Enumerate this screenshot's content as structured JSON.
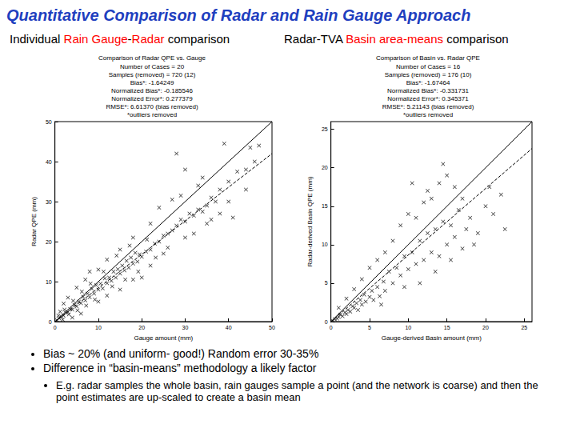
{
  "slide": {
    "title": "Quantitative Comparison of Radar and Rain Gauge Approach",
    "panel_headings": [
      [
        {
          "text": "Individual ",
          "color": "#000000"
        },
        {
          "text": "Rain Gauge",
          "color": "#ff0000"
        },
        {
          "text": "-",
          "color": "#000000"
        },
        {
          "text": "Radar",
          "color": "#ff0000"
        },
        {
          "text": " comparison",
          "color": "#000000"
        }
      ],
      [
        {
          "text": "Radar-TVA ",
          "color": "#000000"
        },
        {
          "text": "Basin area-means",
          "color": "#ff0000"
        },
        {
          "text": " comparison",
          "color": "#000000"
        }
      ]
    ],
    "bullets": [
      "Bias ~ 20% (and uniform- good!) Random error 30-35%",
      "Difference in “basin-means” methodology a likely factor"
    ],
    "sub_bullets": [
      "E.g. radar samples the whole basin, rain gauges sample a point (and the network is coarse) and then the point estimates are up-scaled to create a basin mean"
    ]
  },
  "chart_data": [
    {
      "type": "scatter",
      "title": "Comparison of Radar QPE vs. Gauge",
      "annotations": [
        "Number of Cases = 20",
        "Samples (removed) = 720 (12)",
        "Bias*: -1.64249",
        "Normalized Bias*: -0.185546",
        "Normalized Error*: 0.277379",
        "RMSE*: 6.61370 (bias removed)",
        "*outliers removed"
      ],
      "x_label": "Gauge amount (mm)",
      "y_label": "Radar QPE (mm)",
      "xlim": [
        0,
        50
      ],
      "xticks": [
        0,
        10,
        20,
        30,
        40,
        50
      ],
      "ylim": [
        0,
        50
      ],
      "yticks": [
        0,
        10,
        20,
        30,
        40,
        50
      ],
      "grid": false,
      "series": [
        {
          "type": "scatter",
          "marker": "x",
          "color": "#000000",
          "x": [
            0.5,
            1,
            1.5,
            2,
            2.5,
            3,
            3.5,
            4,
            4.5,
            5,
            5.5,
            6,
            6.5,
            7,
            7.5,
            8,
            8.5,
            9,
            9.5,
            10,
            10.5,
            11,
            11.5,
            12,
            12.5,
            13,
            13.5,
            14,
            14.5,
            15,
            15.5,
            16,
            16.5,
            17,
            17.5,
            18,
            18.5,
            19,
            19.5,
            20,
            21,
            22,
            23,
            24,
            25,
            26,
            27,
            28,
            29,
            30,
            31,
            32,
            33,
            34,
            35,
            36,
            37,
            38,
            40,
            42,
            44,
            46,
            2,
            3,
            5,
            7,
            8,
            10,
            12,
            15,
            18,
            22,
            27,
            33,
            28,
            30,
            24,
            20,
            25,
            30,
            35,
            40,
            15,
            10,
            6,
            4,
            12,
            18,
            22,
            26,
            32,
            38,
            44,
            0.8,
            1.2,
            1.8,
            2.2,
            3.2,
            4.2,
            5.2,
            6.2,
            7.2,
            8.2,
            9.2,
            11.2,
            13.2,
            14.2,
            16.2,
            17.2,
            19.2,
            21.2,
            23.2,
            29,
            34,
            36,
            45,
            47,
            41,
            39
          ],
          "values": [
            0.3,
            0.8,
            1.2,
            1.5,
            2.2,
            2.4,
            3.1,
            3.0,
            4.2,
            3.8,
            5.0,
            4.6,
            6.2,
            5.3,
            7.0,
            6.1,
            8.2,
            7.0,
            9.1,
            8.0,
            9.5,
            8.3,
            10.8,
            9.6,
            11.0,
            10.2,
            12.5,
            11.0,
            13.1,
            12.0,
            14.0,
            12.8,
            15.2,
            13.5,
            16.0,
            14.5,
            17.2,
            15.0,
            16.8,
            16.2,
            17.5,
            18.0,
            19.5,
            20.0,
            21.5,
            22.0,
            22.8,
            24.0,
            25.5,
            25.0,
            27.0,
            26.5,
            28.0,
            27.5,
            29.0,
            31.0,
            30.0,
            33.0,
            35.0,
            37.5,
            38.0,
            40.0,
            4.5,
            6.0,
            8.5,
            10.5,
            12.5,
            13.0,
            15.5,
            18.0,
            21.0,
            24.5,
            30.5,
            34.0,
            42.0,
            38.0,
            28.5,
            11.0,
            17.0,
            21.0,
            24.5,
            30.0,
            8.0,
            5.0,
            2.0,
            1.0,
            6.5,
            10.5,
            14.0,
            18.5,
            22.0,
            27.0,
            33.0,
            1.5,
            2.5,
            0.5,
            3.0,
            1.8,
            5.2,
            2.8,
            7.5,
            4.0,
            9.5,
            5.5,
            12.5,
            8.8,
            16.5,
            10.5,
            19.0,
            12.5,
            20.5,
            16.0,
            31.5,
            36.0,
            25.5,
            43.5,
            44.0,
            26.0,
            44.5
          ]
        },
        {
          "type": "line",
          "line_style": "solid",
          "color": "#000000",
          "x": [
            0,
            50
          ],
          "values": [
            0,
            50
          ]
        },
        {
          "type": "line",
          "line_style": "dashed",
          "color": "#000000",
          "x": [
            0,
            50
          ],
          "values": [
            0,
            42
          ]
        }
      ]
    },
    {
      "type": "scatter",
      "title": "Comparison of Basin vs. Radar QPE",
      "annotations": [
        "Number of Cases = 16",
        "Samples (removed) = 176 (10)",
        "Bias*: -1.67464",
        "Normalized Bias*: -0.331731",
        "Normalized Error*: 0.345371",
        "RMSE*: 5.21143 (bias removed)",
        "*outliers removed"
      ],
      "x_label": "Gauge-derived Basin amount (mm)",
      "y_label": "Radar-derived Basin QPE (mm)",
      "xlim": [
        0,
        26
      ],
      "xticks": [
        0,
        5,
        10,
        15,
        20,
        25
      ],
      "ylim": [
        0,
        26
      ],
      "yticks": [
        0,
        5,
        10,
        15,
        20,
        25
      ],
      "grid": false,
      "series": [
        {
          "type": "scatter",
          "marker": "x",
          "color": "#000000",
          "x": [
            0.2,
            0.5,
            0.8,
            1,
            1.2,
            1.5,
            1.8,
            2,
            2.2,
            2.5,
            2.8,
            3,
            3.3,
            3.5,
            3.8,
            4,
            4.3,
            4.5,
            5,
            5.3,
            5.5,
            6,
            6.3,
            6.8,
            7,
            7.5,
            8,
            8.5,
            9,
            9.5,
            10,
            10.5,
            11,
            11.5,
            12,
            12.5,
            13,
            13.5,
            14,
            14.5,
            15,
            15.5,
            16,
            16.5,
            17,
            17.5,
            18,
            19,
            20,
            21,
            22,
            9,
            10,
            11,
            12,
            12.5,
            13,
            14,
            8,
            7,
            6,
            15,
            16,
            17,
            4,
            5,
            3,
            13.5,
            15.5,
            18.5,
            11.5,
            2,
            1,
            6.5,
            9.5,
            20.5,
            22.5,
            14.5,
            10.5
          ],
          "values": [
            0.1,
            0.3,
            0.4,
            0.6,
            0.9,
            0.7,
            1.2,
            1.0,
            1.5,
            1.3,
            2.0,
            1.8,
            2.4,
            1.5,
            2.8,
            2.2,
            3.5,
            2.6,
            3.2,
            4.0,
            2.8,
            4.5,
            3.3,
            5.2,
            4.0,
            6.5,
            5.0,
            7.0,
            6.0,
            8.5,
            6.8,
            9.0,
            7.5,
            10.5,
            8.0,
            11.5,
            9.0,
            12.0,
            8.5,
            13.0,
            10.0,
            12.5,
            11.0,
            14.5,
            9.5,
            12.0,
            13.5,
            11.5,
            15.0,
            14.0,
            16.5,
            12.5,
            14.0,
            13.5,
            15.5,
            17.0,
            16.0,
            18.0,
            10.5,
            9.0,
            8.0,
            19.0,
            17.5,
            16.0,
            5.5,
            7.0,
            4.2,
            6.5,
            8.0,
            10.0,
            5.0,
            3.0,
            1.8,
            2.2,
            4.5,
            17.5,
            12.0,
            20.5,
            18.0
          ]
        },
        {
          "type": "line",
          "line_style": "solid",
          "color": "#000000",
          "x": [
            0,
            26
          ],
          "values": [
            0,
            26
          ]
        },
        {
          "type": "line",
          "line_style": "dashed",
          "color": "#000000",
          "x": [
            0,
            26
          ],
          "values": [
            0,
            22.5
          ]
        }
      ]
    }
  ]
}
